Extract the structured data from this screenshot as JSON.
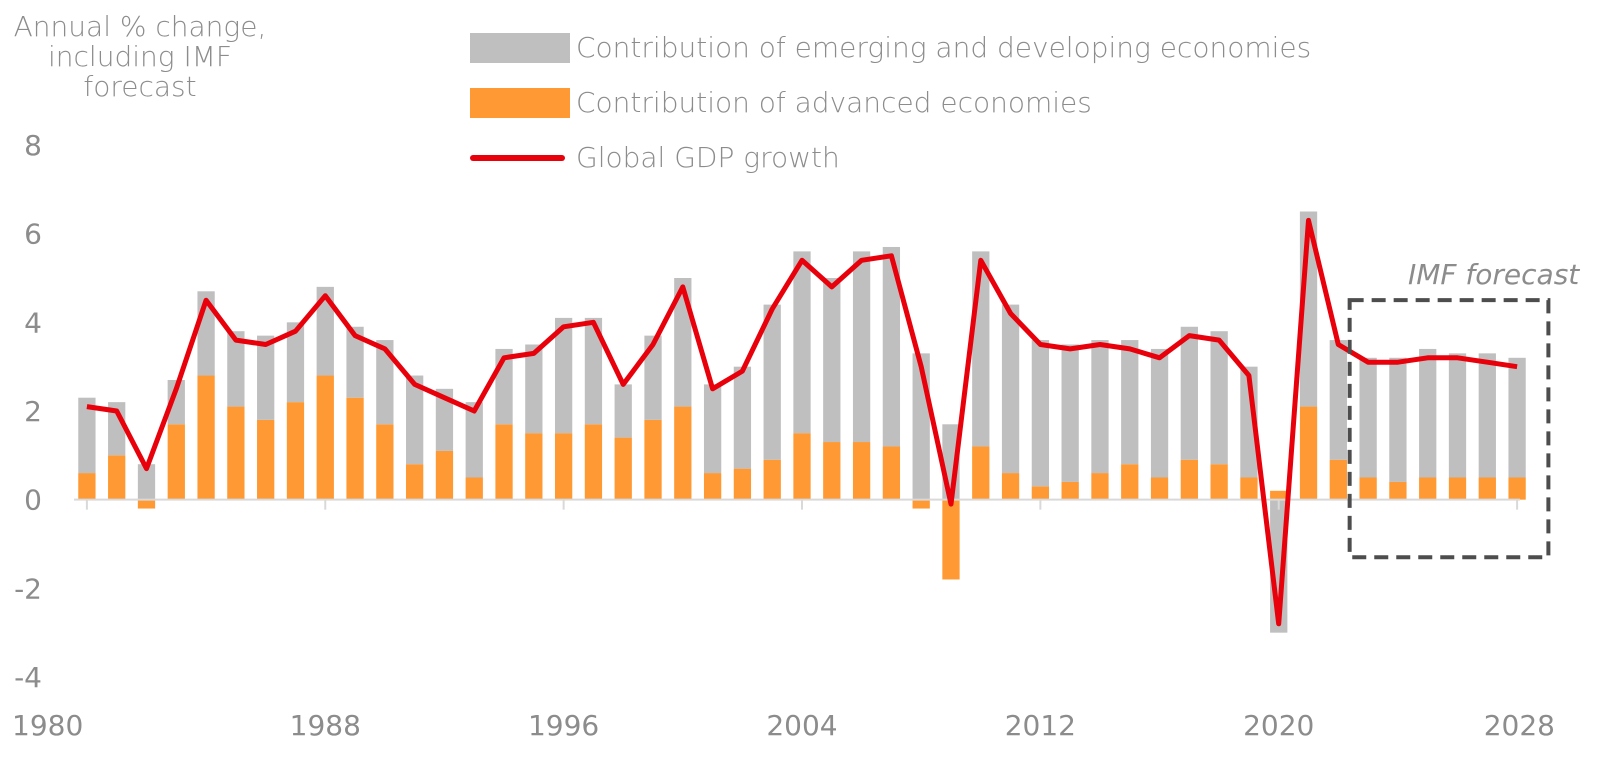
{
  "chart_data": {
    "type": "bar",
    "ylabel": "Annual % change, including IMF forecast",
    "ylim": [
      -4,
      8
    ],
    "yticks": [
      8,
      6,
      4,
      2,
      0,
      -2,
      -4
    ],
    "x": [
      1980,
      1981,
      1982,
      1983,
      1984,
      1985,
      1986,
      1987,
      1988,
      1989,
      1990,
      1991,
      1992,
      1993,
      1994,
      1995,
      1996,
      1997,
      1998,
      1999,
      2000,
      2001,
      2002,
      2003,
      2004,
      2005,
      2006,
      2007,
      2008,
      2009,
      2010,
      2011,
      2012,
      2013,
      2014,
      2015,
      2016,
      2017,
      2018,
      2019,
      2020,
      2021,
      2022,
      2023,
      2024,
      2025,
      2026,
      2027,
      2028
    ],
    "xticks": [
      "1980",
      "1988",
      "1996",
      "2004",
      "2012",
      "2020",
      "2028"
    ],
    "stacked": true,
    "series": [
      {
        "name": "Contribution of advanced economies",
        "kind": "bar",
        "color": "#FF9933",
        "values": [
          0.6,
          1.0,
          -0.2,
          1.7,
          2.8,
          2.1,
          1.8,
          2.2,
          2.8,
          2.3,
          1.7,
          0.8,
          1.1,
          0.5,
          1.7,
          1.5,
          1.5,
          1.7,
          1.4,
          1.8,
          2.1,
          0.6,
          0.7,
          0.9,
          1.5,
          1.3,
          1.3,
          1.2,
          -0.2,
          -1.8,
          1.2,
          0.6,
          0.3,
          0.4,
          0.6,
          0.8,
          0.5,
          0.9,
          0.8,
          0.5,
          0.2,
          2.1,
          0.9,
          0.5,
          0.4,
          0.5,
          0.5,
          0.5,
          0.5
        ]
      },
      {
        "name": "Contribution of emerging and developing economies",
        "kind": "bar",
        "color": "#BFBFBF",
        "values": [
          1.7,
          1.2,
          0.8,
          1.0,
          1.9,
          1.7,
          1.9,
          1.8,
          2.0,
          1.6,
          1.9,
          2.0,
          1.4,
          1.7,
          1.7,
          2.0,
          2.6,
          2.4,
          1.2,
          1.9,
          2.9,
          2.0,
          2.3,
          3.5,
          4.1,
          3.7,
          4.3,
          4.5,
          3.3,
          1.7,
          4.4,
          3.8,
          3.3,
          3.1,
          3.0,
          2.8,
          2.9,
          3.0,
          3.0,
          2.5,
          -3.0,
          4.4,
          2.7,
          2.7,
          2.8,
          2.9,
          2.8,
          2.8,
          2.7
        ]
      },
      {
        "name": "Global GDP growth",
        "kind": "line",
        "color": "#E8000B",
        "values": [
          2.1,
          2.0,
          0.7,
          2.5,
          4.5,
          3.6,
          3.5,
          3.8,
          4.6,
          3.7,
          3.4,
          2.6,
          2.3,
          2.0,
          3.2,
          3.3,
          3.9,
          4.0,
          2.6,
          3.5,
          4.8,
          2.5,
          2.9,
          4.3,
          5.4,
          4.8,
          5.4,
          5.5,
          3.0,
          -0.1,
          5.4,
          4.2,
          3.5,
          3.4,
          3.5,
          3.4,
          3.2,
          3.7,
          3.6,
          2.8,
          -2.8,
          6.3,
          3.5,
          3.1,
          3.1,
          3.2,
          3.2,
          3.1,
          3.0
        ]
      }
    ],
    "annotations": [
      {
        "text": "IMF forecast",
        "style": "dashed-box",
        "from": 2023,
        "to": 2028
      }
    ],
    "legend": "top"
  },
  "ui": {
    "ytitle": [
      "Annual % change,",
      "including IMF",
      "forecast"
    ],
    "legend_items": [
      {
        "label": "Contribution of emerging and developing economies",
        "swatch": "bar",
        "color": "#BFBFBF"
      },
      {
        "label": "Contribution of advanced economies",
        "swatch": "bar",
        "color": "#FF9933"
      },
      {
        "label": "Global GDP growth",
        "swatch": "line",
        "color": "#E8000B"
      }
    ],
    "forecast_label": "IMF forecast"
  }
}
